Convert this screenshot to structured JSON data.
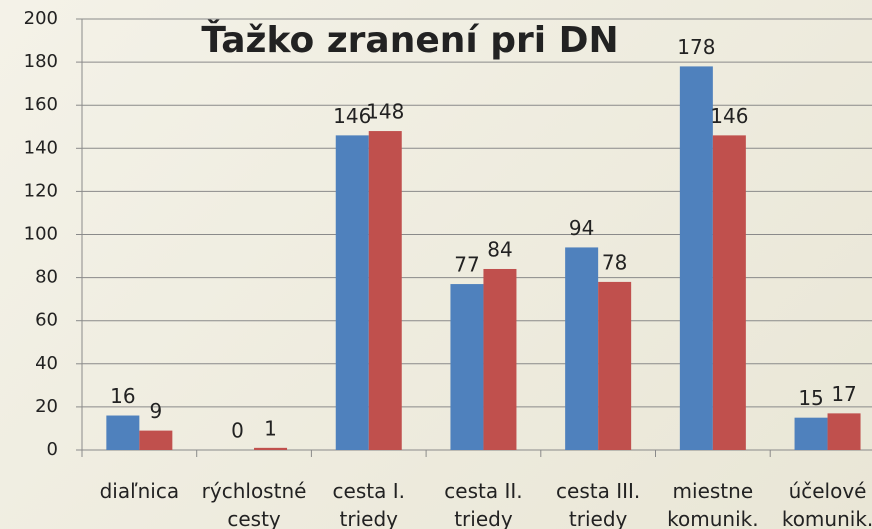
{
  "chart_data": {
    "type": "bar",
    "title": "Ťažko zranení pri DN",
    "categories": [
      "diaľnica",
      "rýchlostné\ncesty",
      "cesta I.\ntriedy",
      "cesta II.\ntriedy",
      "cesta III.\ntriedy",
      "miestne\nkomunik.",
      "účelové\nkomunik."
    ],
    "series": [
      {
        "color": "#4f81bd",
        "values": [
          16,
          0,
          146,
          77,
          94,
          178,
          15
        ]
      },
      {
        "color": "#c0504d",
        "values": [
          9,
          1,
          148,
          84,
          78,
          146,
          17
        ]
      }
    ],
    "ylim": [
      0,
      200
    ],
    "yticks": [
      0,
      20,
      40,
      60,
      80,
      100,
      120,
      140,
      160,
      180,
      200
    ],
    "grid": true
  }
}
